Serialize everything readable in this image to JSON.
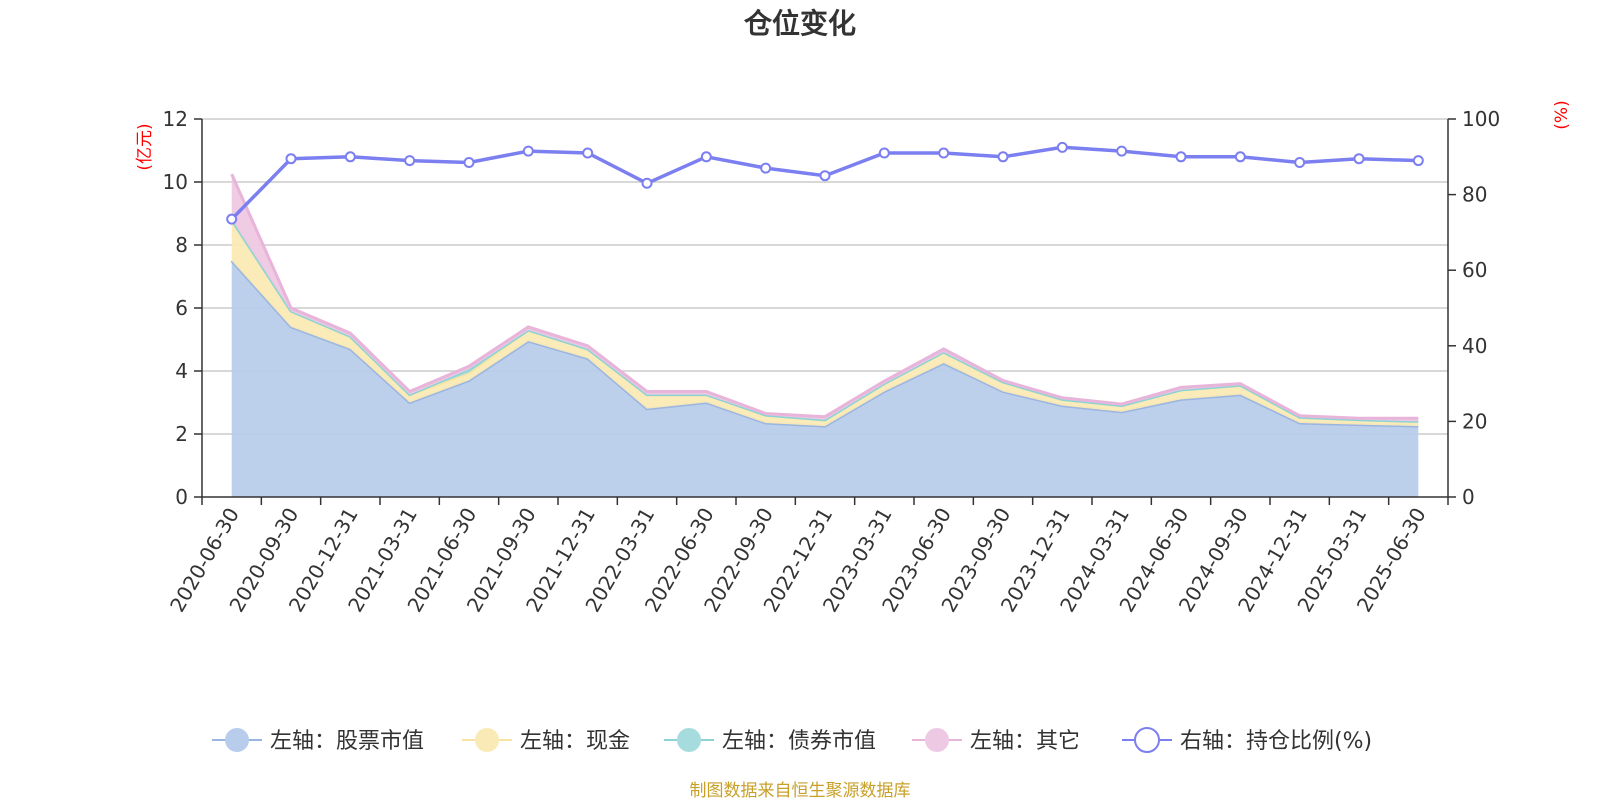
{
  "chart_data": {
    "type": "area",
    "title": "仓位变化",
    "source": "制图数据来自恒生聚源数据库",
    "left_axis": {
      "unit": "(亿元)",
      "range": [
        0,
        12
      ],
      "ticks": [
        0,
        2,
        4,
        6,
        8,
        10,
        12
      ]
    },
    "right_axis": {
      "unit": "(%)",
      "range": [
        0,
        100
      ],
      "ticks": [
        0,
        20,
        40,
        60,
        80,
        100
      ]
    },
    "grid": true,
    "legend_position": "bottom",
    "categories": [
      "2020-06-30",
      "2020-09-30",
      "2020-12-31",
      "2021-03-31",
      "2021-06-30",
      "2021-09-30",
      "2021-12-31",
      "2022-03-31",
      "2022-06-30",
      "2022-09-30",
      "2022-12-31",
      "2023-03-31",
      "2023-06-30",
      "2023-09-30",
      "2023-12-31",
      "2024-03-31",
      "2024-06-30",
      "2024-09-30",
      "2024-12-31",
      "2025-03-31",
      "2025-06-30"
    ],
    "series": [
      {
        "name": "左轴：股票市值",
        "axis": "left",
        "stacked": true,
        "color": "#9ab5e0",
        "fill": "#b8cdeb",
        "values": [
          7.5,
          5.4,
          4.7,
          3.0,
          3.7,
          4.95,
          4.4,
          2.8,
          3.0,
          2.35,
          2.25,
          3.35,
          4.25,
          3.35,
          2.9,
          2.7,
          3.1,
          3.25,
          2.35,
          2.3,
          2.25
        ]
      },
      {
        "name": "左轴：现金",
        "axis": "left",
        "stacked": true,
        "color": "#f8e49e",
        "fill": "#faeab5",
        "values": [
          1.3,
          0.5,
          0.4,
          0.25,
          0.25,
          0.35,
          0.3,
          0.45,
          0.25,
          0.25,
          0.2,
          0.25,
          0.35,
          0.3,
          0.2,
          0.2,
          0.3,
          0.3,
          0.18,
          0.15,
          0.15
        ]
      },
      {
        "name": "左轴：债券市值",
        "axis": "left",
        "stacked": true,
        "color": "#8dd3d6",
        "fill": "#a6dcde",
        "values": [
          0,
          0,
          0,
          0,
          0.1,
          0,
          0,
          0,
          0,
          0,
          0,
          0,
          0,
          0,
          0,
          0,
          0,
          0,
          0,
          0,
          0
        ]
      },
      {
        "name": "左轴：其它",
        "axis": "left",
        "stacked": true,
        "color": "#e8b4da",
        "fill": "#eec9e3",
        "values": [
          1.45,
          0.1,
          0.1,
          0.1,
          0.1,
          0.1,
          0.1,
          0.1,
          0.1,
          0.05,
          0.1,
          0.08,
          0.1,
          0.05,
          0.05,
          0.05,
          0.08,
          0.05,
          0.05,
          0.05,
          0.1
        ]
      },
      {
        "name": "右轴：持仓比例(%)",
        "axis": "right",
        "type": "line",
        "color": "#7b7ff0",
        "values": [
          73.5,
          89.5,
          90.0,
          89.0,
          88.5,
          91.5,
          91.0,
          83.0,
          90.0,
          87.0,
          85.0,
          91.0,
          91.0,
          90.0,
          92.5,
          91.5,
          90.0,
          90.0,
          88.5,
          89.5,
          89.0
        ]
      }
    ]
  }
}
